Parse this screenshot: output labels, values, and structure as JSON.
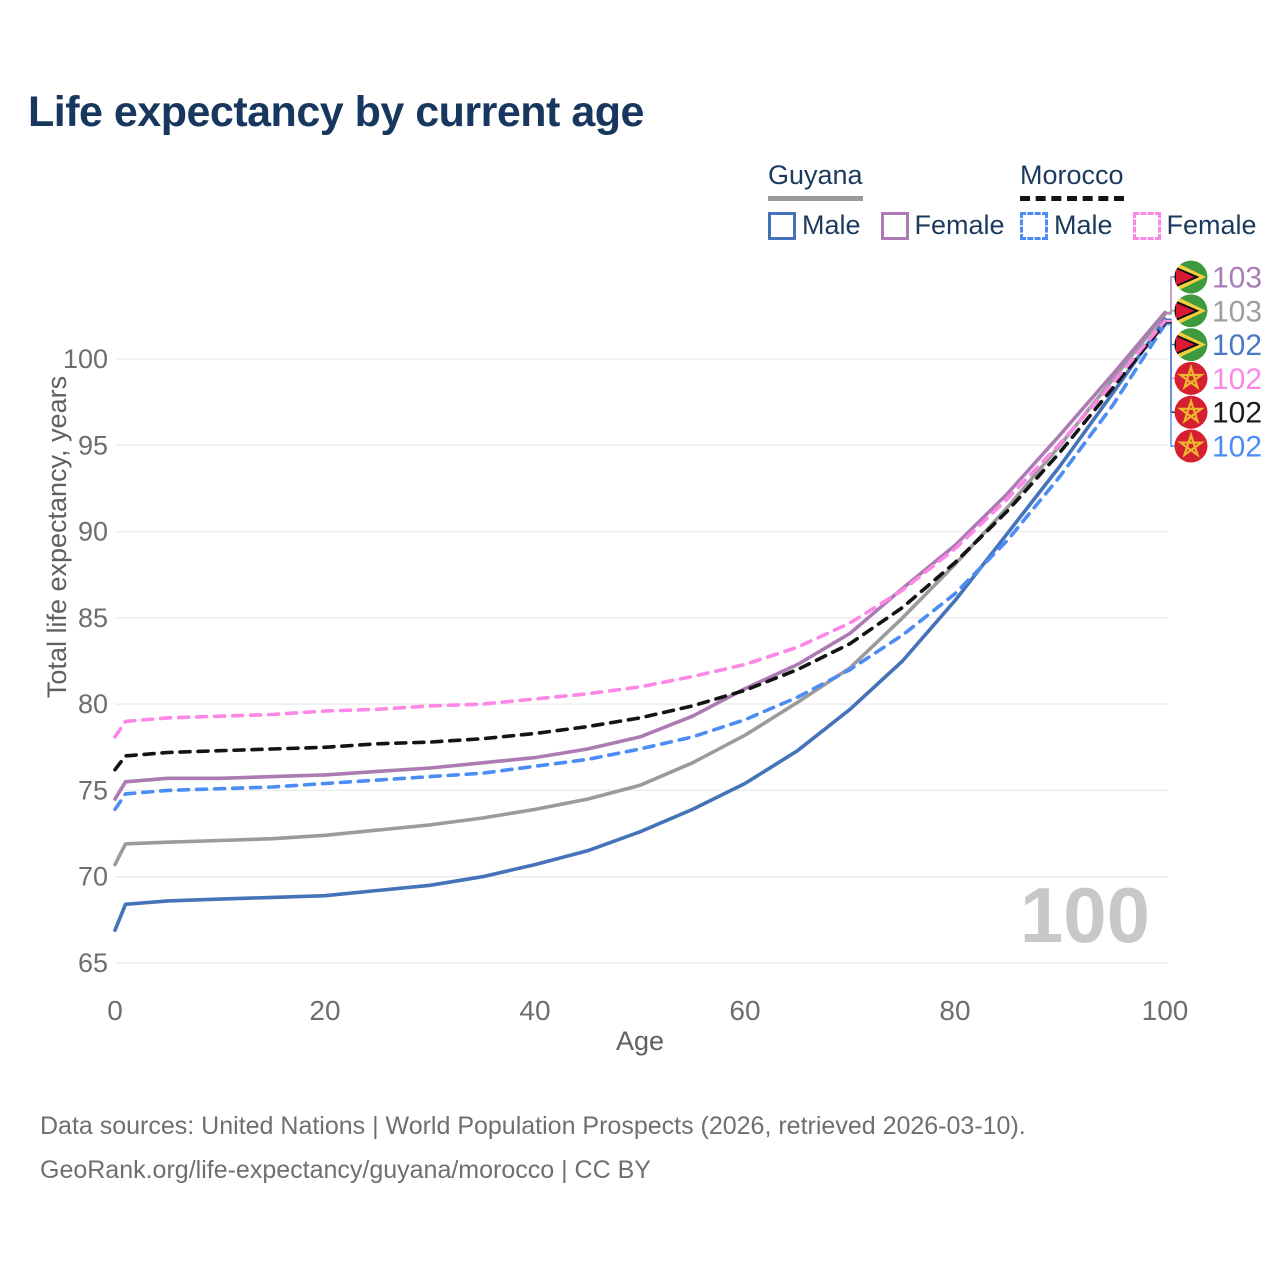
{
  "title": "Life expectancy by current age",
  "watermark": "100",
  "legend": {
    "guyana": {
      "title": "Guyana",
      "male": "Male",
      "female": "Female"
    },
    "morocco": {
      "title": "Morocco",
      "male": "Male",
      "female": "Female"
    }
  },
  "footer": {
    "line1": "Data sources: United Nations | World Population Prospects (2026, retrieved 2026-03-10).",
    "line2": "GeoRank.org/life-expectancy/guyana/morocco | CC BY"
  },
  "colors": {
    "title_text": "#17375e",
    "legend_text": "#1c3a5e",
    "tick_text": "#6e6e6e",
    "axis_title_text": "#606060",
    "grid_line": "#ededed",
    "watermark_text": "#c8c8c8",
    "footer_text": "#6f6f6f",
    "guyana_flag_green": "#3e9a3e",
    "guyana_flag_yellow": "#f6cf3f",
    "guyana_flag_red": "#da1a32",
    "morocco_flag_red": "#d62030",
    "morocco_flag_star": "#ecb72f"
  },
  "chart_data": {
    "type": "line",
    "title": "Life expectancy by current age",
    "xlabel": "Age",
    "ylabel": "Total life expectancy, years",
    "xlim": [
      0,
      100
    ],
    "ylim": [
      63.5,
      104
    ],
    "x_ticks": [
      0,
      20,
      40,
      60,
      80,
      100
    ],
    "y_ticks": [
      65,
      70,
      75,
      80,
      85,
      90,
      95,
      100
    ],
    "grid": "horizontal",
    "legend_position": "top-right",
    "x": [
      0,
      1,
      5,
      10,
      15,
      20,
      25,
      30,
      35,
      40,
      45,
      50,
      55,
      60,
      65,
      70,
      75,
      80,
      85,
      90,
      95,
      100
    ],
    "draw_order": [
      1,
      2,
      0,
      5,
      4,
      3
    ],
    "series": [
      {
        "name": "Guyana Female",
        "country": "Guyana",
        "sex": "Female",
        "style": "solid",
        "color": "#ad7bb3",
        "label_color": "#a87cb5",
        "end_label": "103",
        "values": [
          74.5,
          75.5,
          75.7,
          75.7,
          75.8,
          75.9,
          76.1,
          76.3,
          76.6,
          76.9,
          77.4,
          78.1,
          79.3,
          80.9,
          82.3,
          84.1,
          86.7,
          89.2,
          92.2,
          95.6,
          99.1,
          102.7
        ]
      },
      {
        "name": "Guyana Both sexes",
        "country": "Guyana",
        "sex": "Both",
        "style": "solid",
        "color": "#9b9b9b",
        "label_color": "#9e9e9e",
        "end_label": "103",
        "values": [
          70.7,
          71.9,
          72.0,
          72.1,
          72.2,
          72.4,
          72.7,
          73.0,
          73.4,
          73.9,
          74.5,
          75.3,
          76.6,
          78.2,
          80.1,
          82.1,
          85.0,
          88.1,
          91.4,
          95.0,
          98.8,
          102.6
        ]
      },
      {
        "name": "Guyana Male",
        "country": "Guyana",
        "sex": "Male",
        "style": "solid",
        "color": "#4573b9",
        "label_color": "#4a79c4",
        "end_label": "102",
        "values": [
          66.9,
          68.4,
          68.6,
          68.7,
          68.8,
          68.9,
          69.2,
          69.5,
          70.0,
          70.7,
          71.5,
          72.6,
          73.9,
          75.4,
          77.3,
          79.7,
          82.5,
          86.0,
          89.9,
          93.8,
          98.0,
          102.3
        ]
      },
      {
        "name": "Morocco Female",
        "country": "Morocco",
        "sex": "Female",
        "style": "dashed",
        "color": "#fd87e6",
        "label_color": "#fc86e8",
        "end_label": "102",
        "values": [
          78.1,
          79.0,
          79.2,
          79.3,
          79.4,
          79.6,
          79.7,
          79.9,
          80.0,
          80.3,
          80.6,
          81.0,
          81.6,
          82.3,
          83.3,
          84.7,
          86.6,
          89.0,
          91.9,
          95.1,
          98.6,
          102.2
        ]
      },
      {
        "name": "Morocco Both sexes",
        "country": "Morocco",
        "sex": "Both",
        "style": "dashed",
        "color": "#141414",
        "label_color": "#1c1c1c",
        "end_label": "102",
        "values": [
          76.2,
          77.0,
          77.2,
          77.3,
          77.4,
          77.5,
          77.7,
          77.8,
          78.0,
          78.3,
          78.7,
          79.2,
          79.9,
          80.8,
          82.0,
          83.5,
          85.6,
          88.2,
          91.2,
          94.6,
          98.3,
          102.1
        ]
      },
      {
        "name": "Morocco Male",
        "country": "Morocco",
        "sex": "Male",
        "style": "dashed",
        "color": "#4c8df5",
        "label_color": "#4c8df5",
        "end_label": "102",
        "values": [
          73.9,
          74.8,
          75.0,
          75.1,
          75.2,
          75.4,
          75.6,
          75.8,
          76.0,
          76.4,
          76.8,
          77.4,
          78.1,
          79.1,
          80.4,
          82.0,
          84.0,
          86.4,
          89.5,
          93.2,
          97.3,
          102.0
        ]
      }
    ]
  }
}
